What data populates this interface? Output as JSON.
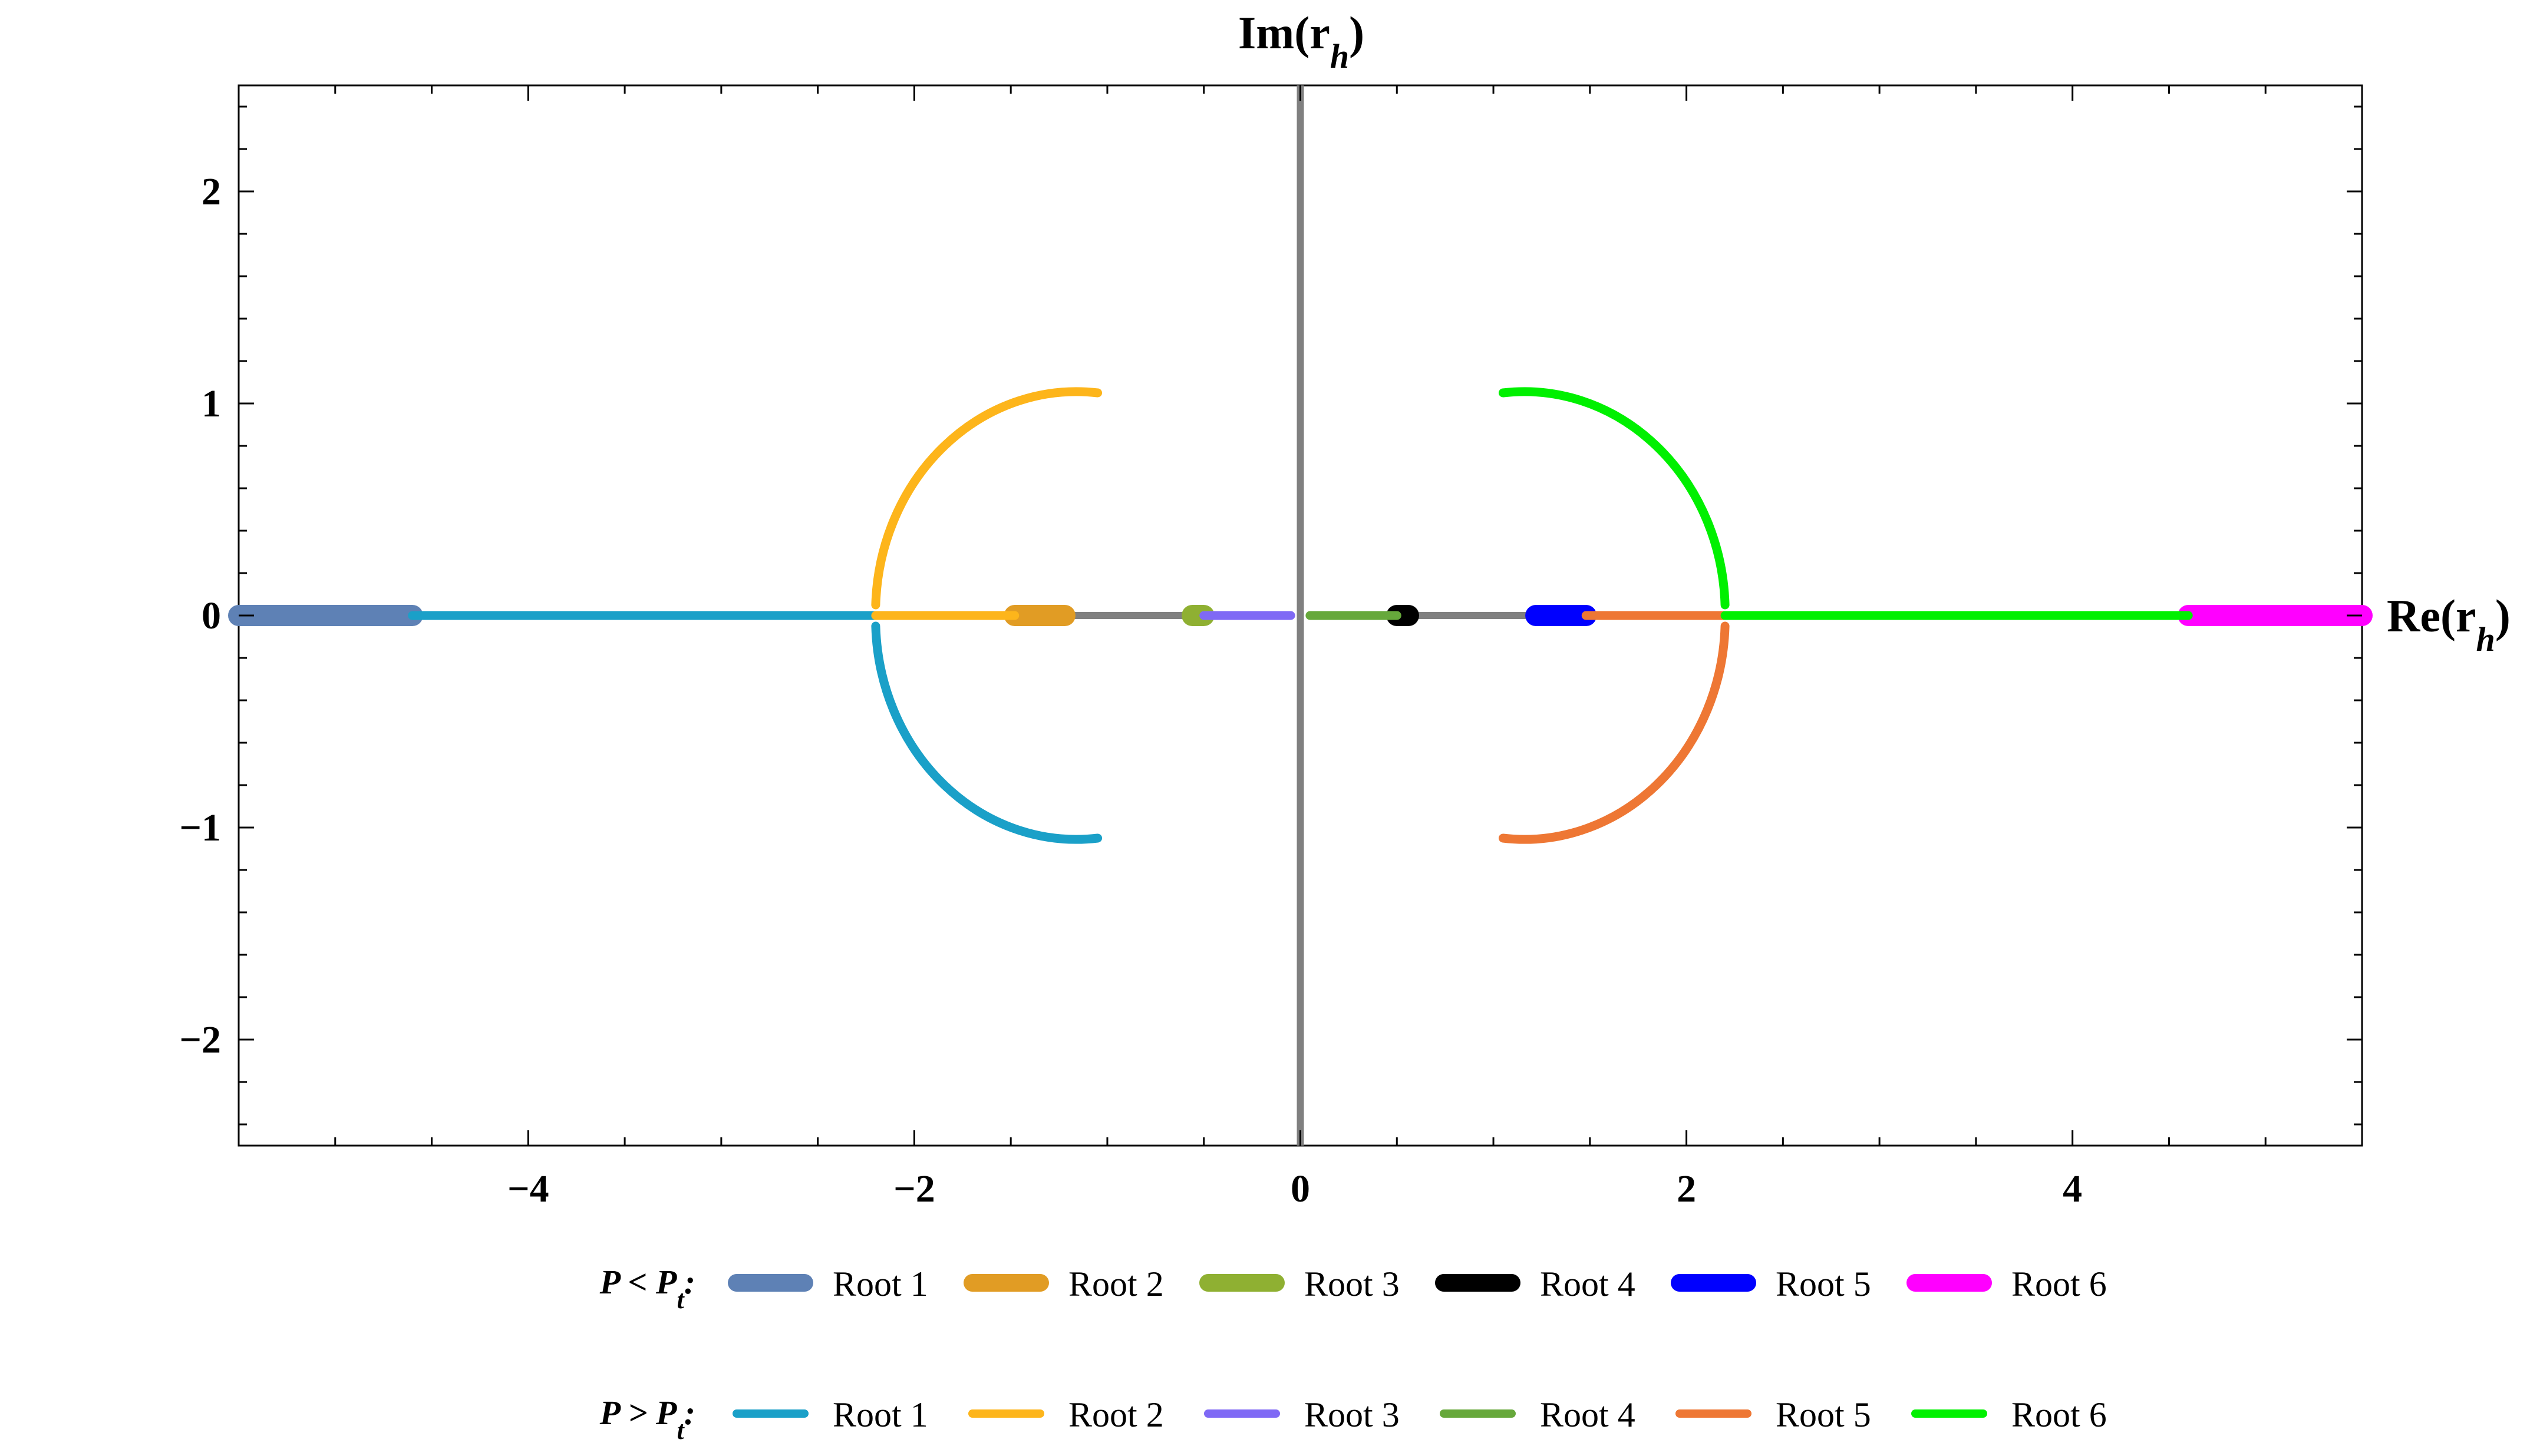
{
  "chart_data": {
    "type": "scatter",
    "x_axis_label": "Re(r_h)",
    "y_axis_label": "Im(r_h)",
    "x_axis_label_parts": {
      "main": "Re(r",
      "sub": "h",
      "close": ")"
    },
    "y_axis_label_parts": {
      "main": "Im(r",
      "sub": "h",
      "close": ")"
    },
    "xlim": [
      -5.5,
      5.5
    ],
    "ylim": [
      -2.5,
      2.5
    ],
    "x_ticks": [
      -4,
      -2,
      0,
      2,
      4
    ],
    "y_ticks": [
      -2,
      -1,
      0,
      1,
      2
    ],
    "x_tick_labels": [
      "−4",
      "−2",
      "0",
      "2",
      "4"
    ],
    "y_tick_labels": [
      "−2",
      "−1",
      "0",
      "1",
      "2"
    ],
    "grid": false,
    "legend_position": "bottom",
    "vertical_axis_line": {
      "x": 0,
      "color": "#808080"
    },
    "connector_color": "#808080",
    "connectors": [
      {
        "from": [
          -1.25,
          0
        ],
        "to": [
          -0.55,
          0
        ]
      },
      {
        "from": [
          0.55,
          0
        ],
        "to": [
          1.25,
          0
        ]
      }
    ],
    "legend_groups": [
      {
        "label": "P < P",
        "label_sub": "t",
        "label_suffix": ":",
        "series": [
          {
            "name": "Root 1",
            "color": "#5E81B5",
            "branch": "real",
            "x": [
              -5.5,
              -4.6
            ],
            "thick": true
          },
          {
            "name": "Root 2",
            "color": "#E19C24",
            "branch": "real",
            "x": [
              -1.48,
              -1.22
            ],
            "thick": true
          },
          {
            "name": "Root 3",
            "color": "#8FB032",
            "branch": "real",
            "x": [
              -0.56,
              -0.5
            ],
            "thick": true
          },
          {
            "name": "Root 4",
            "color": "#000000",
            "branch": "real",
            "x": [
              0.5,
              0.56
            ],
            "thick": true
          },
          {
            "name": "Root 5",
            "color": "#0000FF",
            "branch": "real",
            "x": [
              1.22,
              1.48
            ],
            "thick": true
          },
          {
            "name": "Root 6",
            "color": "#FF00FF",
            "branch": "real",
            "x": [
              4.6,
              5.5
            ],
            "thick": true
          }
        ]
      },
      {
        "label": "P > P",
        "label_sub": "t",
        "label_suffix": ":",
        "series": [
          {
            "name": "Root 1",
            "color": "#1AA0C8",
            "branch": "real+arc",
            "x": [
              -4.6,
              -2.2
            ],
            "arc": {
              "center": [
                -1.2,
                0
              ],
              "radius": 1.04,
              "from": [
                -2.2,
                -0.05
              ],
              "to": [
                -1.05,
                -1.05
              ],
              "half": "lower"
            }
          },
          {
            "name": "Root 2",
            "color": "#FDB51B",
            "branch": "real+arc",
            "x": [
              -2.2,
              -1.48
            ],
            "arc": {
              "center": [
                -1.2,
                0
              ],
              "radius": 1.04,
              "from": [
                -2.2,
                0.05
              ],
              "to": [
                -1.05,
                1.05
              ],
              "half": "upper"
            }
          },
          {
            "name": "Root 3",
            "color": "#7F69F5",
            "branch": "real",
            "x": [
              -0.5,
              -0.05
            ]
          },
          {
            "name": "Root 4",
            "color": "#66A83B",
            "branch": "real",
            "x": [
              0.05,
              0.5
            ]
          },
          {
            "name": "Root 5",
            "color": "#EE7734",
            "branch": "real+arc",
            "x": [
              1.48,
              2.2
            ],
            "arc": {
              "center": [
                1.2,
                0
              ],
              "radius": 1.04,
              "from": [
                2.2,
                -0.05
              ],
              "to": [
                1.05,
                -1.05
              ],
              "half": "lower"
            }
          },
          {
            "name": "Root 6",
            "color": "#00F000",
            "branch": "real+arc",
            "x": [
              2.2,
              4.6
            ],
            "arc": {
              "center": [
                1.2,
                0
              ],
              "radius": 1.04,
              "from": [
                2.2,
                0.05
              ],
              "to": [
                1.05,
                1.05
              ],
              "half": "upper"
            }
          }
        ]
      }
    ]
  }
}
